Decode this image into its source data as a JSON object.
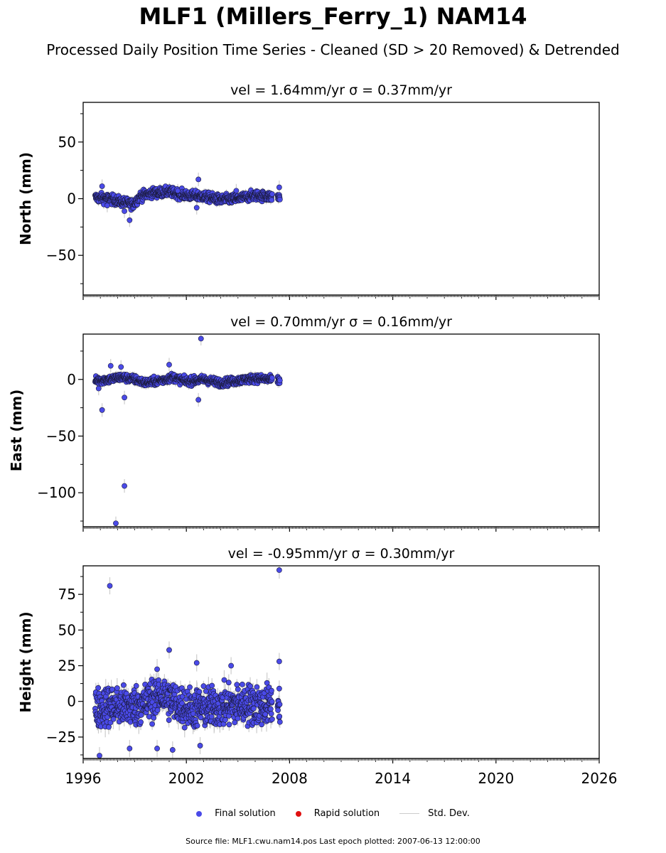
{
  "title": "MLF1 (Millers_Ferry_1) NAM14",
  "subtitle": "Processed Daily Position Time Series - Cleaned (SD > 20 Removed) & Detrended",
  "source_note": "Source file: MLF1.cwu.nam14.pos  Last epoch plotted: 2007-06-13 12:00:00",
  "legend": {
    "final": "Final solution",
    "rapid": "Rapid solution",
    "std": "Std. Dev.",
    "final_color": "#4a4ae8",
    "rapid_color": "#e01010",
    "std_color": "#cccccc"
  },
  "chart_data": [
    {
      "type": "scatter",
      "panel": "north",
      "title": "vel = 1.64mm/yr   σ = 0.37mm/yr",
      "ylabel": "North (mm)",
      "xlim": [
        1996,
        2026
      ],
      "ylim": [
        -85,
        85
      ],
      "yticks": [
        -50,
        0,
        50
      ],
      "xticks": [
        1996,
        2002,
        2008,
        2014,
        2020,
        2026
      ],
      "x_range_data": [
        1996.7,
        2007.45
      ],
      "trend": [
        [
          1996.7,
          1
        ],
        [
          1997.5,
          0
        ],
        [
          1998.3,
          -3
        ],
        [
          1998.9,
          -5
        ],
        [
          1999.3,
          2
        ],
        [
          2000.0,
          5
        ],
        [
          2001.0,
          6
        ],
        [
          2002.0,
          3
        ],
        [
          2003.0,
          2
        ],
        [
          2004.0,
          -1
        ],
        [
          2005.0,
          0
        ],
        [
          2006.0,
          3
        ],
        [
          2007.45,
          1
        ]
      ],
      "scatter": 3,
      "outliers": [
        [
          1997.1,
          11
        ],
        [
          1997.4,
          -6
        ],
        [
          1998.4,
          -11
        ],
        [
          1998.7,
          -19
        ],
        [
          2001.5,
          7
        ],
        [
          2002.6,
          -8
        ],
        [
          2002.7,
          17
        ],
        [
          2004.9,
          7
        ],
        [
          2007.4,
          10
        ]
      ]
    },
    {
      "type": "scatter",
      "panel": "east",
      "title": "vel = 0.70mm/yr   σ = 0.16mm/yr",
      "ylabel": "East (mm)",
      "xlim": [
        1996,
        2026
      ],
      "ylim": [
        -130,
        40
      ],
      "yticks": [
        -100,
        -50,
        0
      ],
      "xticks": [
        1996,
        2002,
        2008,
        2014,
        2020,
        2026
      ],
      "x_range_data": [
        1996.7,
        2007.45
      ],
      "trend": [
        [
          1996.7,
          -1
        ],
        [
          1997.5,
          0
        ],
        [
          1998.2,
          2
        ],
        [
          1999.0,
          0
        ],
        [
          1999.6,
          -3
        ],
        [
          2000.5,
          -1
        ],
        [
          2001.2,
          2
        ],
        [
          2002.0,
          -2
        ],
        [
          2003.0,
          0
        ],
        [
          2004.0,
          -3
        ],
        [
          2005.0,
          -1
        ],
        [
          2006.0,
          1
        ],
        [
          2007.45,
          -1
        ]
      ],
      "scatter": 2.5,
      "outliers": [
        [
          1997.1,
          -27
        ],
        [
          1997.9,
          -127
        ],
        [
          1997.6,
          12
        ],
        [
          1998.2,
          11
        ],
        [
          1998.4,
          -16
        ],
        [
          1998.4,
          -94
        ],
        [
          2001.0,
          13
        ],
        [
          2002.85,
          36
        ],
        [
          2002.7,
          -18
        ],
        [
          1996.9,
          -8
        ]
      ]
    },
    {
      "type": "scatter",
      "panel": "height",
      "title": "vel = -0.95mm/yr   σ = 0.30mm/yr",
      "ylabel": "Height (mm)",
      "xlim": [
        1996,
        2026
      ],
      "ylim": [
        -40,
        95
      ],
      "yticks": [
        -25,
        0,
        25,
        50,
        75
      ],
      "xticks": [
        1996,
        2002,
        2008,
        2014,
        2020,
        2026
      ],
      "x_range_data": [
        1996.7,
        2007.45
      ],
      "trend": [
        [
          1996.7,
          -5
        ],
        [
          1997.5,
          -3
        ],
        [
          1998.5,
          -4
        ],
        [
          1999.5,
          -2
        ],
        [
          2000.5,
          5
        ],
        [
          2001.5,
          -2
        ],
        [
          2002.5,
          -5
        ],
        [
          2003.5,
          -4
        ],
        [
          2004.5,
          -3
        ],
        [
          2005.5,
          -2
        ],
        [
          2006.5,
          -3
        ],
        [
          2007.45,
          -1
        ]
      ],
      "scatter": 10,
      "outliers": [
        [
          1997.55,
          81
        ],
        [
          2007.4,
          92
        ],
        [
          1996.95,
          -38
        ],
        [
          2000.3,
          -33
        ],
        [
          2001.0,
          36
        ],
        [
          2002.6,
          27
        ],
        [
          2004.6,
          25
        ],
        [
          2007.4,
          28
        ],
        [
          2001.2,
          -34
        ],
        [
          1998.7,
          -33
        ],
        [
          2002.8,
          -31
        ]
      ]
    }
  ]
}
